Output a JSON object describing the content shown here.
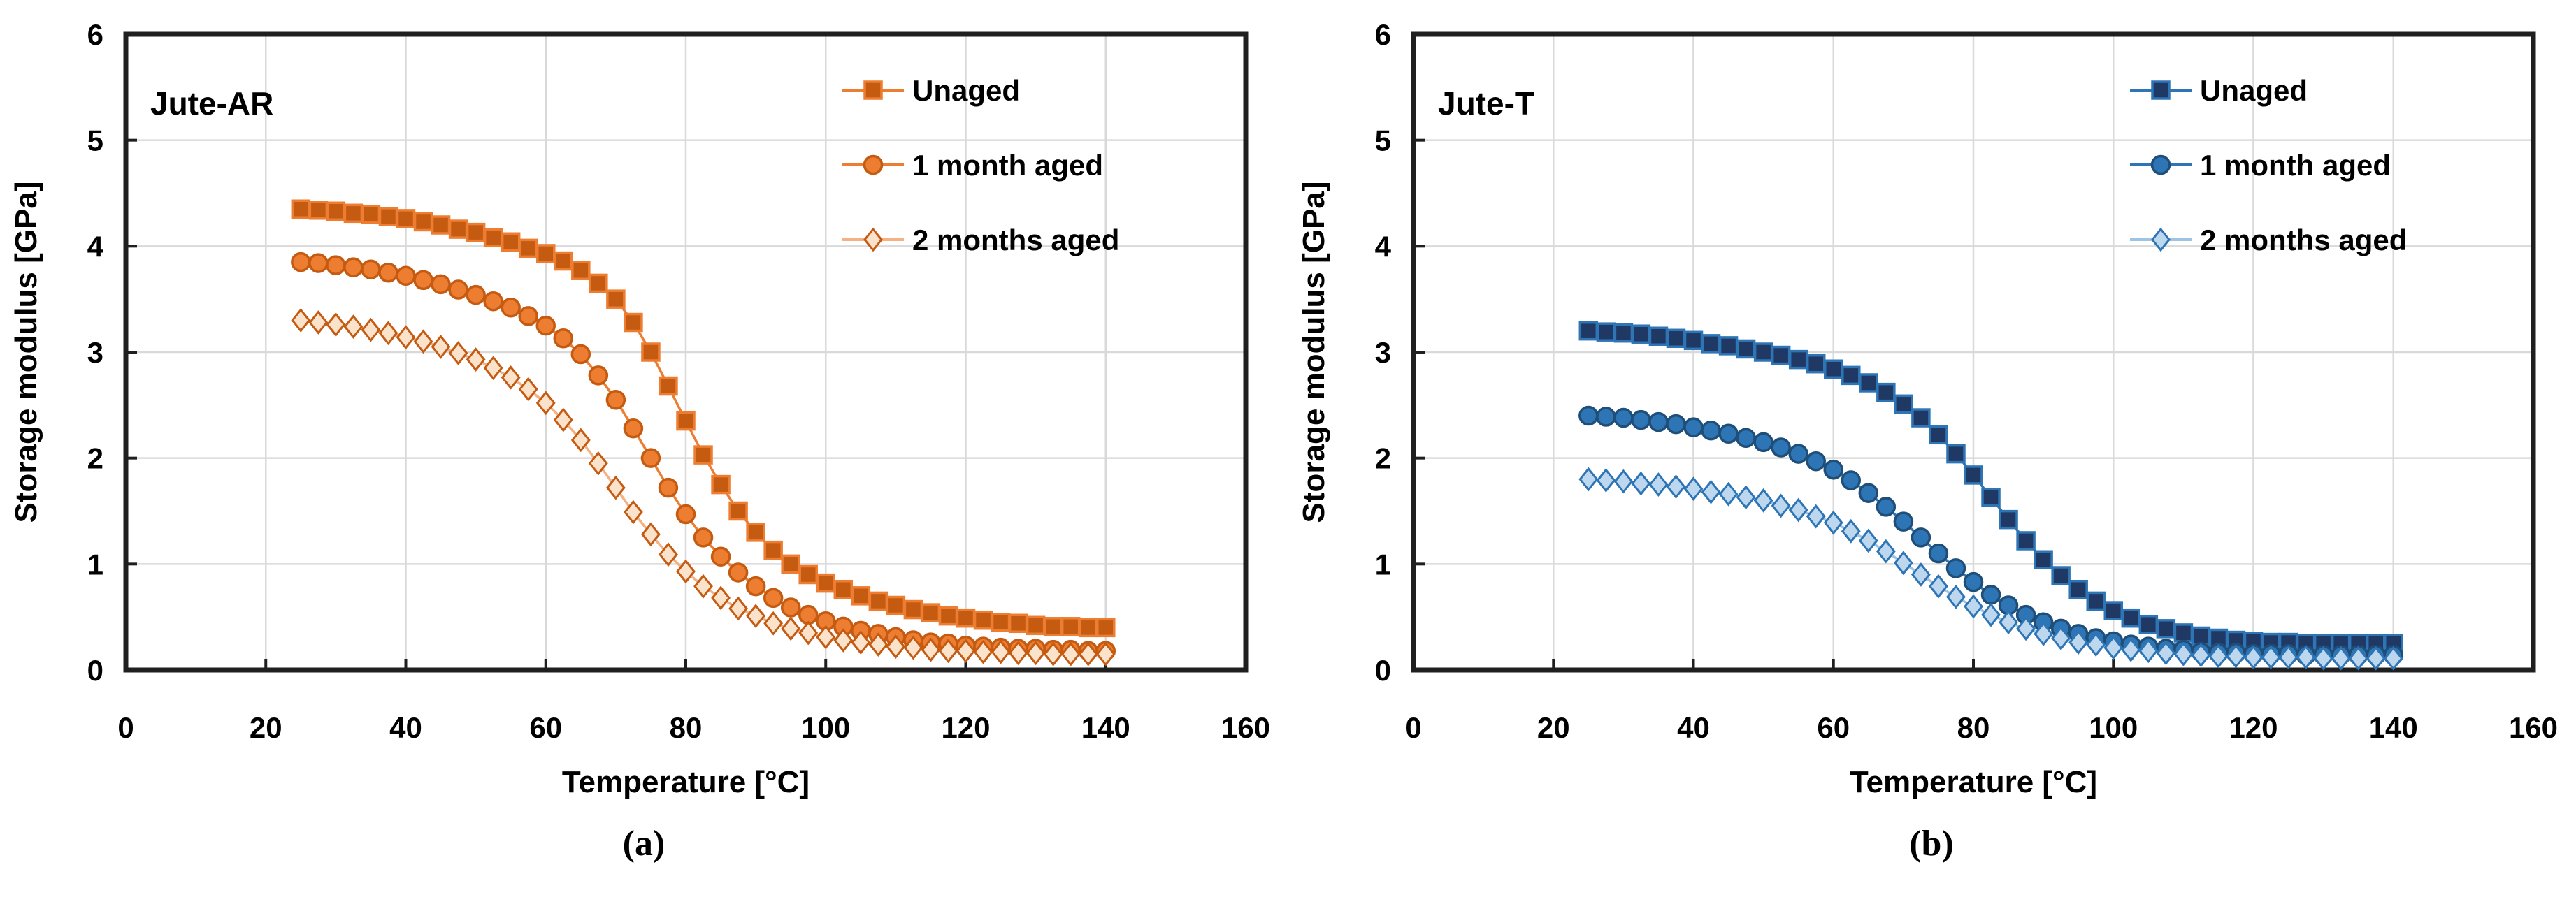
{
  "page": {
    "background": "#ffffff",
    "text_color": "#000000",
    "axis_color": "#1f1f1f",
    "gridline_color": "#d9d9d9"
  },
  "chart_data": [
    {
      "type": "line",
      "panel_label": "Jute-AR",
      "caption": "(a)",
      "xlabel": "Temperature [°C]",
      "ylabel": "Storage modulus [GPa]",
      "xlim": [
        0,
        160
      ],
      "ylim": [
        0,
        6
      ],
      "xticks": [
        0,
        20,
        40,
        60,
        80,
        100,
        120,
        140,
        160
      ],
      "yticks": [
        0,
        1,
        2,
        3,
        4,
        5,
        6
      ],
      "grid": true,
      "legend_position": "top-right-inside",
      "x": [
        25,
        27.5,
        30,
        32.5,
        35,
        37.5,
        40,
        42.5,
        45,
        47.5,
        50,
        52.5,
        55,
        57.5,
        60,
        62.5,
        65,
        67.5,
        70,
        72.5,
        75,
        77.5,
        80,
        82.5,
        85,
        87.5,
        90,
        92.5,
        95,
        97.5,
        100,
        102.5,
        105,
        107.5,
        110,
        112.5,
        115,
        117.5,
        120,
        122.5,
        125,
        127.5,
        130,
        132.5,
        135,
        137.5,
        140
      ],
      "series": [
        {
          "name": "Unaged",
          "marker": "square",
          "marker_fill": "#C55A11",
          "marker_stroke": "#ED7D31",
          "line_color": "#ED7D31",
          "values": [
            4.35,
            4.34,
            4.33,
            4.31,
            4.3,
            4.28,
            4.26,
            4.23,
            4.2,
            4.16,
            4.13,
            4.08,
            4.04,
            3.98,
            3.93,
            3.86,
            3.77,
            3.65,
            3.5,
            3.28,
            3.0,
            2.68,
            2.35,
            2.03,
            1.75,
            1.5,
            1.3,
            1.13,
            1.0,
            0.9,
            0.82,
            0.76,
            0.7,
            0.65,
            0.61,
            0.57,
            0.54,
            0.51,
            0.49,
            0.47,
            0.45,
            0.44,
            0.42,
            0.41,
            0.41,
            0.4,
            0.4
          ]
        },
        {
          "name": "1 month aged",
          "marker": "circle",
          "marker_fill": "#ED7D31",
          "marker_stroke": "#C55A11",
          "line_color": "#ED7D31",
          "values": [
            3.85,
            3.84,
            3.82,
            3.8,
            3.78,
            3.75,
            3.72,
            3.68,
            3.64,
            3.59,
            3.54,
            3.48,
            3.42,
            3.34,
            3.25,
            3.13,
            2.98,
            2.78,
            2.55,
            2.28,
            2.0,
            1.72,
            1.47,
            1.25,
            1.07,
            0.92,
            0.79,
            0.68,
            0.59,
            0.52,
            0.46,
            0.41,
            0.37,
            0.34,
            0.31,
            0.28,
            0.26,
            0.25,
            0.23,
            0.22,
            0.21,
            0.2,
            0.2,
            0.19,
            0.19,
            0.18,
            0.18
          ]
        },
        {
          "name": "2 months aged",
          "marker": "diamond",
          "marker_fill": "#FBE2CB",
          "marker_stroke": "#C55A11",
          "line_color": "#F4B183",
          "values": [
            3.3,
            3.28,
            3.26,
            3.24,
            3.21,
            3.18,
            3.14,
            3.1,
            3.05,
            2.99,
            2.93,
            2.85,
            2.76,
            2.65,
            2.52,
            2.36,
            2.17,
            1.95,
            1.72,
            1.49,
            1.28,
            1.09,
            0.93,
            0.79,
            0.68,
            0.58,
            0.51,
            0.44,
            0.39,
            0.35,
            0.31,
            0.28,
            0.26,
            0.24,
            0.22,
            0.21,
            0.19,
            0.18,
            0.18,
            0.17,
            0.17,
            0.16,
            0.16,
            0.15,
            0.15,
            0.15,
            0.15
          ]
        }
      ]
    },
    {
      "type": "line",
      "panel_label": "Jute-T",
      "caption": "(b)",
      "xlabel": "Temperature [°C]",
      "ylabel": "Storage modulus [GPa]",
      "xlim": [
        0,
        160
      ],
      "ylim": [
        0,
        6
      ],
      "xticks": [
        0,
        20,
        40,
        60,
        80,
        100,
        120,
        140,
        160
      ],
      "yticks": [
        0,
        1,
        2,
        3,
        4,
        5,
        6
      ],
      "grid": true,
      "legend_position": "top-right-inside",
      "x": [
        25,
        27.5,
        30,
        32.5,
        35,
        37.5,
        40,
        42.5,
        45,
        47.5,
        50,
        52.5,
        55,
        57.5,
        60,
        62.5,
        65,
        67.5,
        70,
        72.5,
        75,
        77.5,
        80,
        82.5,
        85,
        87.5,
        90,
        92.5,
        95,
        97.5,
        100,
        102.5,
        105,
        107.5,
        110,
        112.5,
        115,
        117.5,
        120,
        122.5,
        125,
        127.5,
        130,
        132.5,
        135,
        137.5,
        140
      ],
      "series": [
        {
          "name": "Unaged",
          "marker": "square",
          "marker_fill": "#1F3864",
          "marker_stroke": "#2E75B6",
          "line_color": "#2E75B6",
          "values": [
            3.2,
            3.19,
            3.18,
            3.17,
            3.15,
            3.13,
            3.11,
            3.08,
            3.06,
            3.03,
            3.0,
            2.97,
            2.93,
            2.89,
            2.84,
            2.78,
            2.71,
            2.62,
            2.51,
            2.38,
            2.22,
            2.04,
            1.84,
            1.63,
            1.42,
            1.22,
            1.04,
            0.89,
            0.76,
            0.65,
            0.56,
            0.49,
            0.43,
            0.39,
            0.35,
            0.32,
            0.3,
            0.28,
            0.27,
            0.26,
            0.26,
            0.25,
            0.25,
            0.25,
            0.25,
            0.25,
            0.25
          ]
        },
        {
          "name": "1 month aged",
          "marker": "circle",
          "marker_fill": "#2E75B6",
          "marker_stroke": "#1F4E79",
          "line_color": "#2E75B6",
          "values": [
            2.4,
            2.39,
            2.38,
            2.36,
            2.34,
            2.32,
            2.29,
            2.26,
            2.23,
            2.19,
            2.15,
            2.1,
            2.04,
            1.97,
            1.89,
            1.79,
            1.67,
            1.54,
            1.4,
            1.25,
            1.1,
            0.96,
            0.83,
            0.71,
            0.61,
            0.52,
            0.45,
            0.39,
            0.34,
            0.3,
            0.27,
            0.24,
            0.22,
            0.2,
            0.19,
            0.17,
            0.16,
            0.16,
            0.15,
            0.15,
            0.15,
            0.14,
            0.14,
            0.14,
            0.14,
            0.14,
            0.14
          ]
        },
        {
          "name": "2 months aged",
          "marker": "diamond",
          "marker_fill": "#BDD7EE",
          "marker_stroke": "#2E75B6",
          "line_color": "#9DC3E6",
          "values": [
            1.8,
            1.79,
            1.78,
            1.76,
            1.75,
            1.73,
            1.71,
            1.68,
            1.66,
            1.63,
            1.6,
            1.55,
            1.51,
            1.45,
            1.39,
            1.31,
            1.22,
            1.12,
            1.01,
            0.9,
            0.79,
            0.69,
            0.6,
            0.52,
            0.45,
            0.39,
            0.34,
            0.3,
            0.26,
            0.24,
            0.21,
            0.19,
            0.18,
            0.16,
            0.15,
            0.14,
            0.13,
            0.13,
            0.12,
            0.12,
            0.12,
            0.12,
            0.11,
            0.11,
            0.11,
            0.11,
            0.11
          ]
        }
      ]
    }
  ]
}
